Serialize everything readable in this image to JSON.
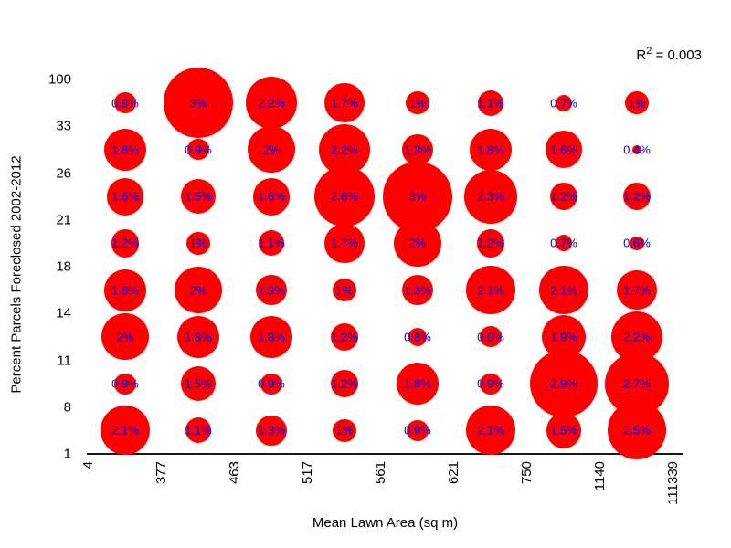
{
  "chart_data": {
    "type": "scatter",
    "subtype": "bubble-grid",
    "xlabel": "Mean Lawn Area (sq m)",
    "ylabel": "Percent Parcels Foreclosed 2002-2012",
    "annotation": {
      "base": "R",
      "sup": "2",
      "rest": " = 0.003"
    },
    "x_tick_labels": [
      "4",
      "377",
      "463",
      "517",
      "561",
      "621",
      "750",
      "1140",
      "111339"
    ],
    "y_tick_labels": [
      "100",
      "33",
      "26",
      "21",
      "18",
      "14",
      "11",
      "8",
      "1"
    ],
    "x_bins": [
      "4-377",
      "377-463",
      "463-517",
      "517-561",
      "561-621",
      "621-750",
      "750-1140",
      "1140-111339"
    ],
    "y_bins_top_to_bottom": [
      "33-100",
      "26-33",
      "21-26",
      "18-21",
      "14-18",
      "11-14",
      "8-11",
      "1-8"
    ],
    "legend_position": "none",
    "grid": "off",
    "rows": [
      {
        "y_bin": "33-100",
        "values": [
          0.9,
          3,
          2.2,
          1.7,
          1,
          1.1,
          0.7,
          1
        ],
        "labels": [
          "0.9%",
          "3%",
          "2.2%",
          "1.7%",
          "1%",
          "1.1%",
          "0.7%",
          "1%"
        ]
      },
      {
        "y_bin": "26-33",
        "values": [
          1.8,
          0.9,
          2,
          2.2,
          1.3,
          1.8,
          1.6,
          0.4
        ],
        "labels": [
          "1.8%",
          "0.9%",
          "2%",
          "2.2%",
          "1.3%",
          "1.8%",
          "1.6%",
          "0.4%"
        ]
      },
      {
        "y_bin": "21-26",
        "values": [
          1.6,
          1.5,
          1.6,
          2.6,
          3,
          2.3,
          1.2,
          1.2
        ],
        "labels": [
          "1.6%",
          "1.5%",
          "1.6%",
          "2.6%",
          "3%",
          "2.3%",
          "1.2%",
          "1.2%"
        ]
      },
      {
        "y_bin": "18-21",
        "values": [
          1.2,
          1,
          1.1,
          1.7,
          2,
          1.2,
          0.7,
          0.6
        ],
        "labels": [
          "1.2%",
          "1%",
          "1.1%",
          "1.7%",
          "2%",
          "1.2%",
          "0.7%",
          "0.6%"
        ]
      },
      {
        "y_bin": "14-18",
        "values": [
          1.8,
          2,
          1.3,
          1,
          1.3,
          2.1,
          2.1,
          1.7
        ],
        "labels": [
          "1.8%",
          "2%",
          "1.3%",
          "1%",
          "1.3%",
          "2.1%",
          "2.1%",
          "1.7%"
        ]
      },
      {
        "y_bin": "11-14",
        "values": [
          2,
          1.8,
          1.8,
          1.2,
          0.8,
          0.9,
          1.9,
          2.2
        ],
        "labels": [
          "2%",
          "1.8%",
          "1.8%",
          "1.2%",
          "0.8%",
          "0.9%",
          "1.9%",
          "2.2%"
        ]
      },
      {
        "y_bin": "8-11",
        "values": [
          0.9,
          1.5,
          0.9,
          1.2,
          1.8,
          0.9,
          2.9,
          2.7
        ],
        "labels": [
          "0.9%",
          "1.5%",
          "0.9%",
          "1.2%",
          "1.8%",
          "0.9%",
          "2.9%",
          "2.7%"
        ]
      },
      {
        "y_bin": "1-8",
        "values": [
          2.1,
          1.1,
          1.3,
          1,
          0.9,
          2.1,
          1.5,
          2.5
        ],
        "labels": [
          "2.1%",
          "1.1%",
          "1.3%",
          "1%",
          "0.9%",
          "2.1%",
          "1.5%",
          "2.5%"
        ]
      }
    ],
    "colors": {
      "bubble": "#ff0000",
      "bubble_label": "#0000ee",
      "axis_text": "#000000",
      "axis_line": "#1a1a1a",
      "background": "#ffffff"
    }
  }
}
